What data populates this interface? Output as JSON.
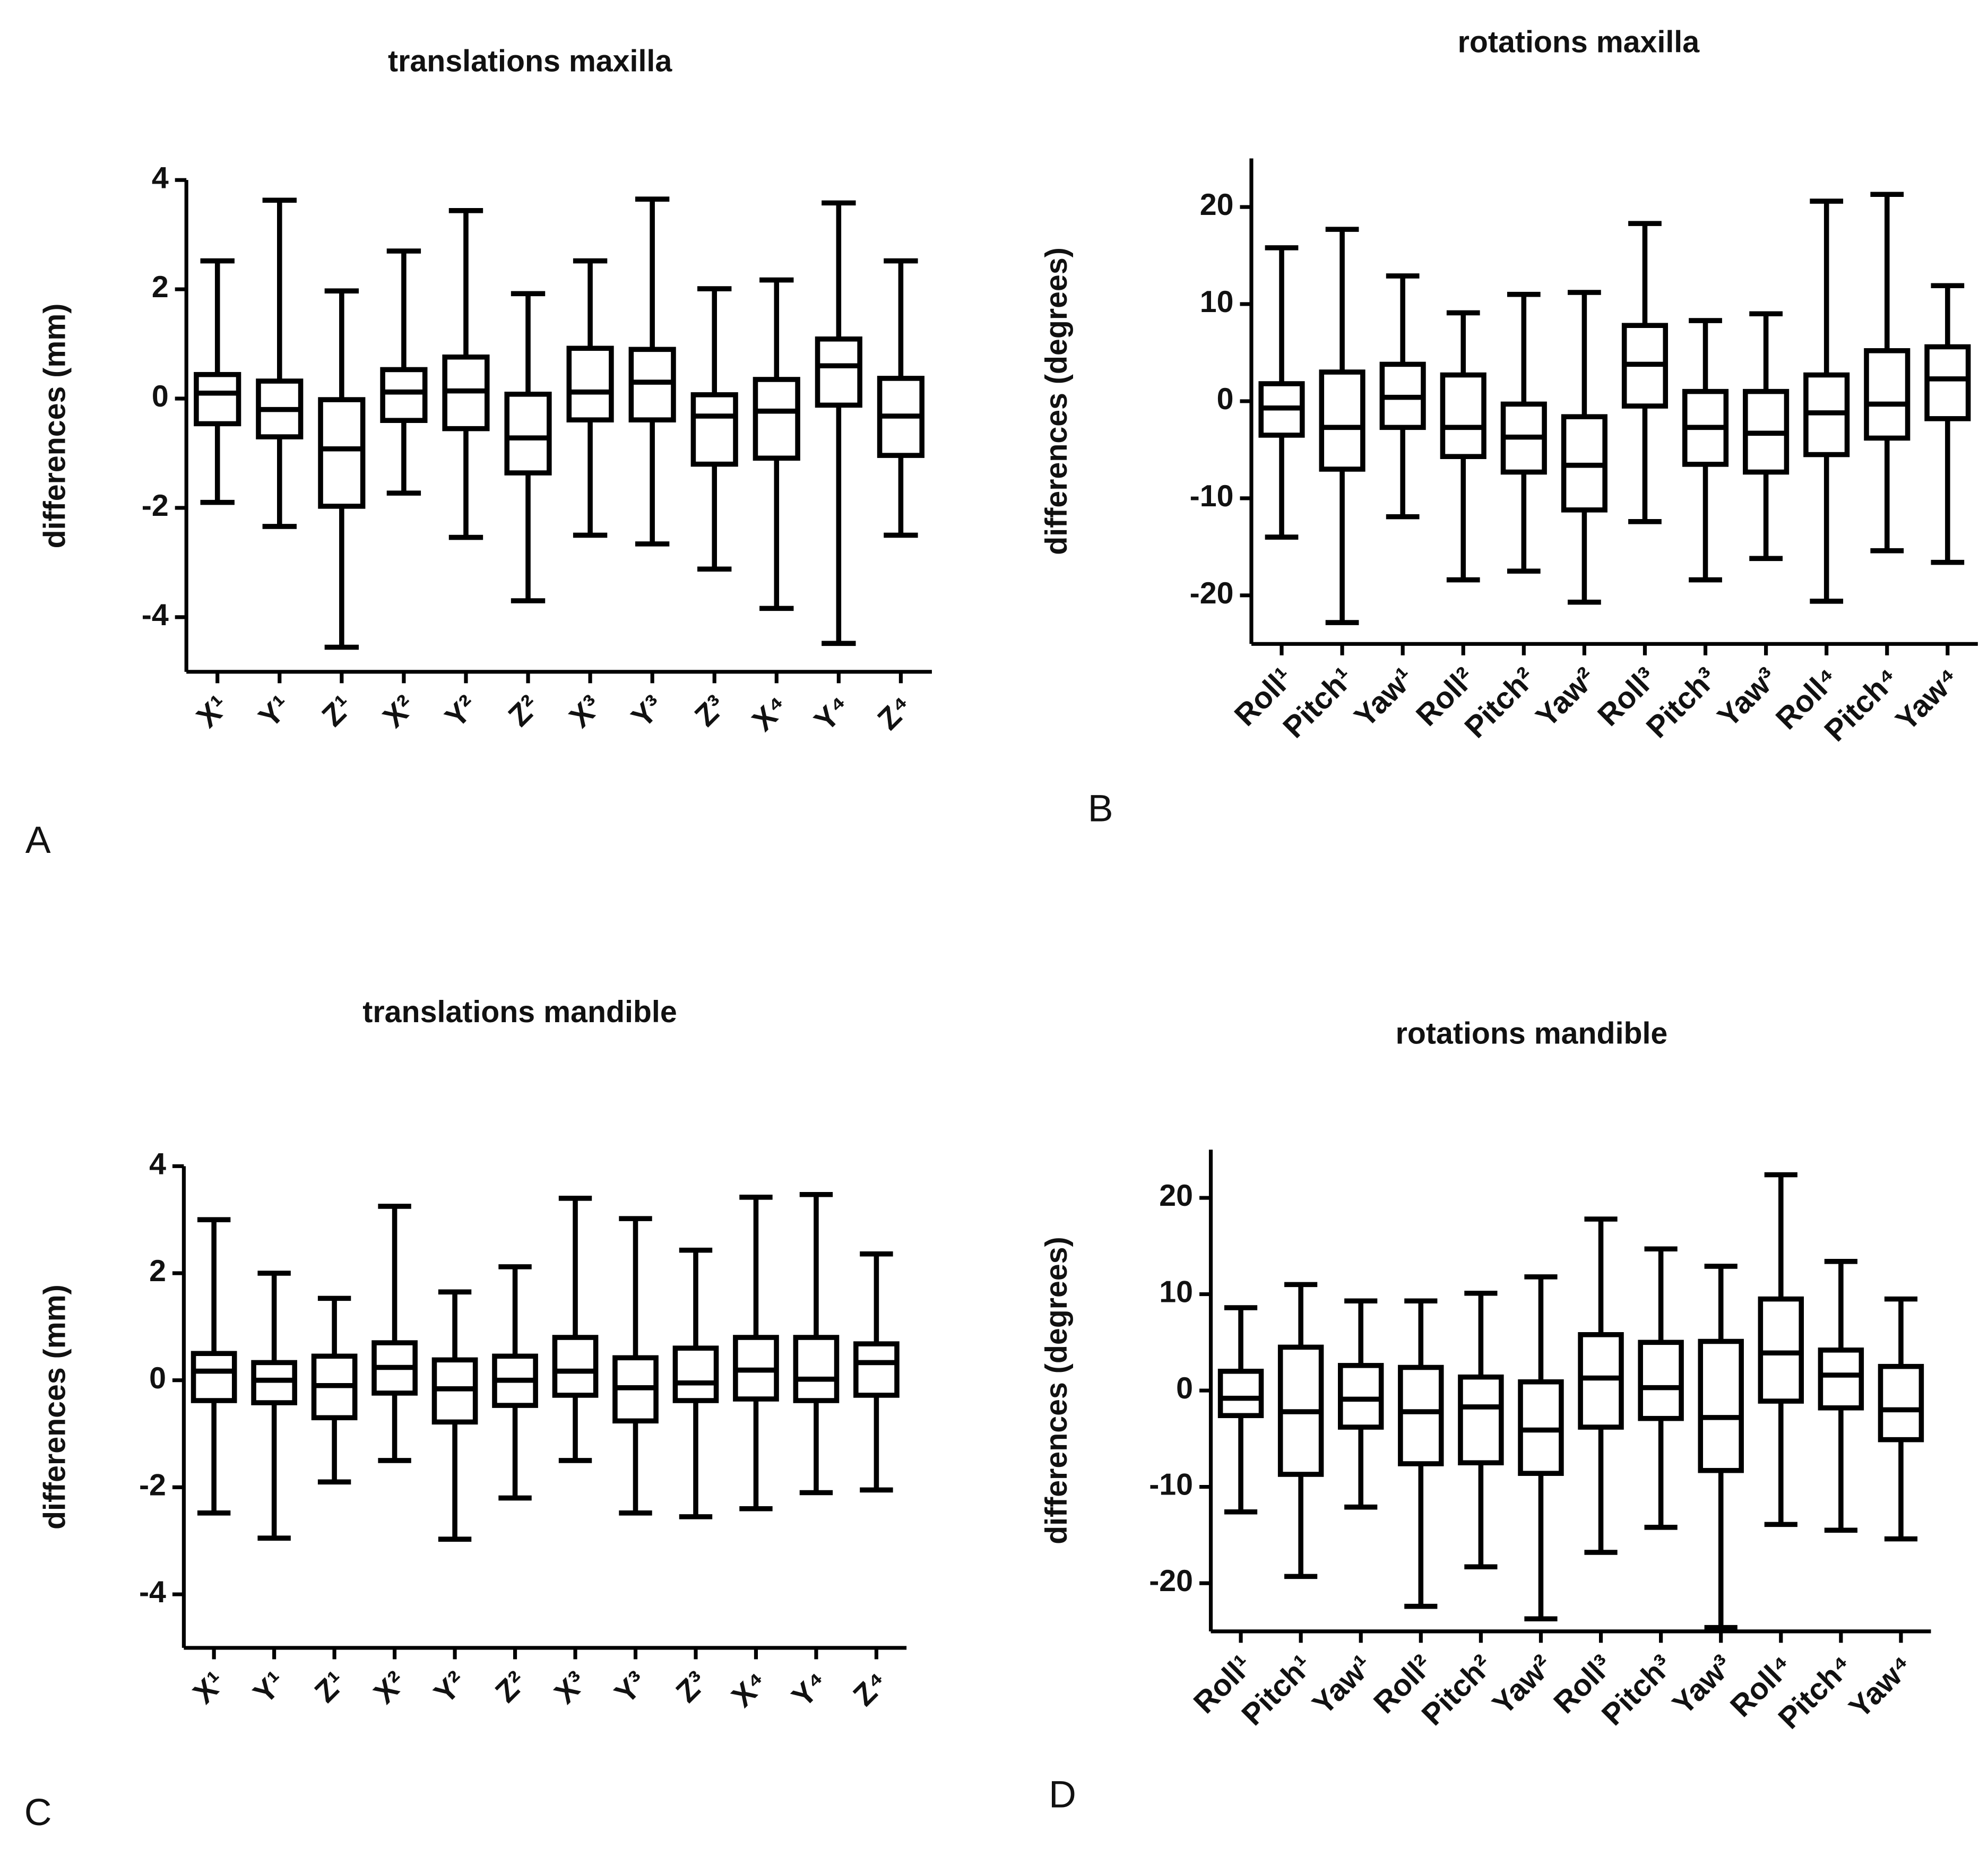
{
  "chart_data": [
    {
      "type": "box",
      "panel": "A",
      "title": "translations maxilla",
      "y_label": "differences (mm)",
      "categories": [
        "X¹",
        "Y¹",
        "Z¹",
        "X²",
        "Y²",
        "Z²",
        "X³",
        "Y³",
        "Z³",
        "X⁴",
        "Y⁴",
        "Z⁴"
      ],
      "min": [
        -1.9,
        -2.34,
        -4.55,
        -1.73,
        -2.54,
        -3.7,
        -2.5,
        -2.66,
        -3.12,
        -3.84,
        -4.48,
        -2.5
      ],
      "q1": [
        -0.46,
        -0.7,
        -1.97,
        -0.4,
        -0.55,
        -1.36,
        -0.39,
        -0.39,
        -1.2,
        -1.09,
        -0.12,
        -1.04
      ],
      "median": [
        0.1,
        -0.2,
        -0.92,
        0.12,
        0.14,
        -0.72,
        0.12,
        0.3,
        -0.32,
        -0.23,
        0.6,
        -0.32
      ],
      "q3": [
        0.44,
        0.32,
        -0.02,
        0.53,
        0.76,
        0.08,
        0.92,
        0.9,
        0.07,
        0.35,
        1.09,
        0.37
      ],
      "max": [
        2.52,
        3.63,
        1.97,
        2.7,
        3.44,
        1.92,
        2.52,
        3.65,
        2.01,
        2.17,
        3.58,
        2.52
      ],
      "ylim": [
        -5,
        4
      ],
      "yticks": [
        -4,
        -2,
        0,
        2,
        4
      ],
      "color": "#000000"
    },
    {
      "type": "box",
      "panel": "B",
      "title": "rotations maxilla",
      "y_label": "differences (degrees)",
      "categories": [
        "Roll¹",
        "Pitch¹",
        "Yaw¹",
        "Roll²",
        "Pitch²",
        "Yaw²",
        "Roll³",
        "Pitch³",
        "Yaw³",
        "Roll⁴",
        "Pitch⁴",
        "Yaw⁴"
      ],
      "min": [
        -14,
        -22.8,
        -11.9,
        -18.4,
        -17.5,
        -20.7,
        -12.4,
        -18.4,
        -16.2,
        -20.6,
        -15.4,
        -16.6
      ],
      "q1": [
        -3.5,
        -7,
        -2.7,
        -5.7,
        -7.3,
        -11.2,
        -0.5,
        -6.5,
        -7.3,
        -5.5,
        -3.8,
        -1.8
      ],
      "median": [
        -0.7,
        -2.7,
        0.4,
        -2.7,
        -3.7,
        -6.6,
        3.8,
        -2.7,
        -3.3,
        -1.2,
        -0.3,
        2.3
      ],
      "q3": [
        1.8,
        3,
        3.8,
        2.7,
        -0.3,
        -1.6,
        7.8,
        1,
        1,
        2.7,
        5.2,
        5.6
      ],
      "max": [
        15.8,
        17.7,
        12.9,
        9.1,
        11,
        11.2,
        18.3,
        8.3,
        9,
        20.6,
        21.3,
        11.9
      ],
      "ylim": [
        -25,
        25
      ],
      "yticks": [
        -20,
        -10,
        0,
        10,
        20
      ],
      "color": "#000000"
    },
    {
      "type": "box",
      "panel": "C",
      "title": "translations mandible",
      "y_label": "differences (mm)",
      "categories": [
        "X¹",
        "Y¹",
        "Z¹",
        "X²",
        "Y²",
        "Z²",
        "X³",
        "Y³",
        "Z³",
        "X⁴",
        "Y⁴",
        "Z⁴"
      ],
      "min": [
        -2.48,
        -2.95,
        -1.9,
        -1.5,
        -2.97,
        -2.2,
        -1.5,
        -2.48,
        -2.55,
        -2.4,
        -2.1,
        -2.05
      ],
      "q1": [
        -0.38,
        -0.42,
        -0.7,
        -0.24,
        -0.78,
        -0.47,
        -0.28,
        -0.76,
        -0.38,
        -0.35,
        -0.38,
        -0.28
      ],
      "median": [
        0.17,
        0,
        -0.1,
        0.24,
        -0.16,
        0,
        0.17,
        -0.14,
        -0.05,
        0.19,
        0.02,
        0.33
      ],
      "q3": [
        0.5,
        0.33,
        0.45,
        0.7,
        0.38,
        0.45,
        0.8,
        0.42,
        0.6,
        0.8,
        0.8,
        0.68
      ],
      "max": [
        3.0,
        2.0,
        1.53,
        3.25,
        1.65,
        2.12,
        3.4,
        3.02,
        2.43,
        3.42,
        3.47,
        2.36
      ],
      "ylim": [
        -5,
        4
      ],
      "yticks": [
        -4,
        -2,
        0,
        2,
        4
      ],
      "color": "#000000"
    },
    {
      "type": "box",
      "panel": "D",
      "title": "rotations mandible",
      "y_label": "differences (degrees)",
      "categories": [
        "Roll¹",
        "Pitch¹",
        "Yaw¹",
        "Roll²",
        "Pitch²",
        "Yaw²",
        "Roll³",
        "Pitch³",
        "Yaw³",
        "Roll⁴",
        "Pitch⁴",
        "Yaw⁴"
      ],
      "min": [
        -12.6,
        -19.3,
        -12.1,
        -22.4,
        -18.3,
        -23.7,
        -16.8,
        -14.2,
        -24.6,
        -13.9,
        -14.5,
        -15.4
      ],
      "q1": [
        -2.6,
        -8.7,
        -3.8,
        -7.6,
        -7.5,
        -8.6,
        -3.8,
        -2.9,
        -8.3,
        -1.1,
        -1.8,
        -5.1
      ],
      "median": [
        -0.8,
        -2.2,
        -0.9,
        -2.2,
        -1.7,
        -4.1,
        1.3,
        0.3,
        -2.8,
        3.9,
        1.6,
        -2
      ],
      "q3": [
        2,
        4.5,
        2.6,
        2.4,
        1.4,
        0.9,
        5.8,
        5,
        5.1,
        9.5,
        4.2,
        2.5
      ],
      "max": [
        8.6,
        11,
        9.3,
        9.3,
        10.1,
        11.8,
        17.8,
        14.7,
        12.9,
        22.4,
        13.4,
        9.5
      ],
      "ylim": [
        -25,
        25
      ],
      "yticks": [
        -20,
        -10,
        0,
        10,
        20
      ],
      "color": "#000000"
    }
  ]
}
